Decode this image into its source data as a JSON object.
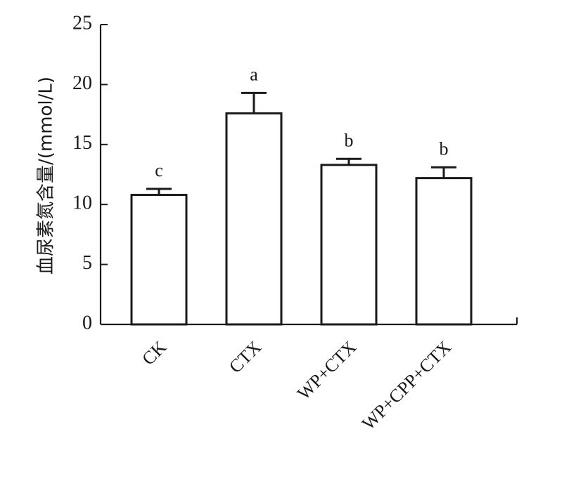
{
  "chart_data": {
    "type": "bar",
    "title": "",
    "xlabel": "",
    "ylabel": "血尿素氮含量/(mmol/L)",
    "ylim": [
      0,
      25
    ],
    "yticks": [
      0,
      5,
      10,
      15,
      20,
      25
    ],
    "ytick_labels": [
      "0",
      "5",
      "10",
      "15",
      "20",
      "25"
    ],
    "categories": [
      "CK",
      "CTX",
      "WP+CTX",
      "WP+CPP+CTX"
    ],
    "values": [
      10.8,
      17.6,
      13.3,
      12.2
    ],
    "errors": [
      0.5,
      1.7,
      0.5,
      0.9
    ],
    "significance": [
      "c",
      "a",
      "b",
      "b"
    ],
    "grid": false,
    "colors": {
      "bar_fill": "#ffffff",
      "bar_stroke": "#1a1a1a",
      "axis": "#1a1a1a"
    }
  }
}
